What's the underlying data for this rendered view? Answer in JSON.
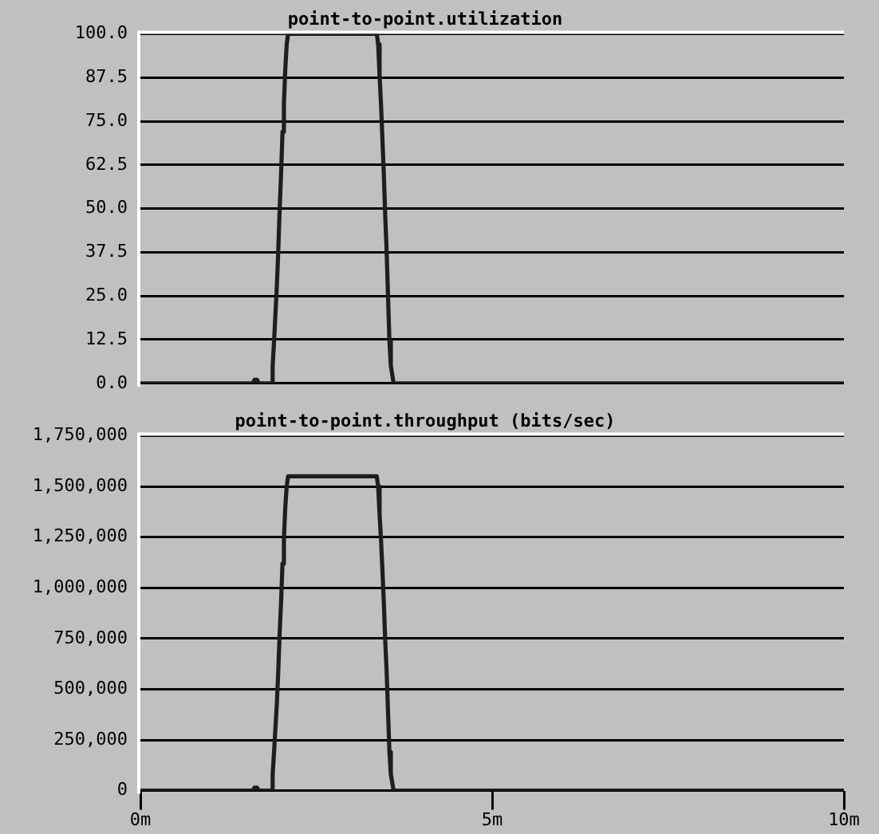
{
  "chart_data": [
    {
      "type": "line",
      "title": "point-to-point.utilization",
      "color": "#1e1e1e",
      "x": [
        0,
        1.6,
        1.62,
        1.66,
        1.68,
        1.86,
        1.88,
        1.9,
        1.92,
        1.94,
        1.96,
        1.98,
        2.0,
        2.02,
        2.04,
        2.06,
        2.08,
        2.1,
        3.36,
        3.38,
        3.4,
        3.42,
        3.44,
        3.46,
        3.48,
        3.5,
        3.52,
        3.54,
        3.56,
        3.6,
        10
      ],
      "values": [
        0,
        0,
        1,
        1,
        0,
        0,
        5,
        12,
        20,
        28,
        38,
        50,
        60,
        72,
        80,
        90,
        97,
        100,
        100,
        97,
        88,
        80,
        70,
        60,
        48,
        38,
        25,
        12,
        5,
        0,
        0
      ],
      "xlim": [
        0,
        10
      ],
      "ylim": [
        0,
        100
      ],
      "yticks": [
        {
          "value": 0,
          "label": "0.0"
        },
        {
          "value": 12.5,
          "label": "12.5"
        },
        {
          "value": 25,
          "label": "25.0"
        },
        {
          "value": 37.5,
          "label": "37.5"
        },
        {
          "value": 50,
          "label": "50.0"
        },
        {
          "value": 62.5,
          "label": "62.5"
        },
        {
          "value": 75,
          "label": "75.0"
        },
        {
          "value": 87.5,
          "label": "87.5"
        },
        {
          "value": 100,
          "label": "100.0"
        }
      ],
      "grid": "y",
      "tick_labels": "y"
    },
    {
      "type": "line",
      "title": "point-to-point.throughput (bits/sec)",
      "color": "#1e1e1e",
      "x": [
        0,
        1.6,
        1.62,
        1.66,
        1.68,
        1.86,
        1.88,
        1.9,
        1.92,
        1.94,
        1.96,
        1.98,
        2.0,
        2.02,
        2.04,
        2.06,
        2.08,
        2.1,
        3.36,
        3.38,
        3.4,
        3.42,
        3.44,
        3.46,
        3.48,
        3.5,
        3.52,
        3.54,
        3.56,
        3.6,
        10
      ],
      "values": [
        0,
        0,
        15000,
        15000,
        0,
        0,
        80000,
        190000,
        310000,
        430000,
        590000,
        780000,
        930000,
        1120000,
        1240000,
        1400000,
        1500000,
        1550000,
        1550000,
        1500000,
        1360000,
        1240000,
        1090000,
        930000,
        740000,
        590000,
        390000,
        190000,
        80000,
        0,
        0
      ],
      "xlim": [
        0,
        10
      ],
      "xticks": [
        {
          "value": 0,
          "label": "0m"
        },
        {
          "value": 5,
          "label": "5m"
        },
        {
          "value": 10,
          "label": "10m"
        }
      ],
      "ylim": [
        0,
        1750000
      ],
      "yticks": [
        {
          "value": 0,
          "label": "0"
        },
        {
          "value": 250000,
          "label": "250,000"
        },
        {
          "value": 500000,
          "label": "500,000"
        },
        {
          "value": 750000,
          "label": "750,000"
        },
        {
          "value": 1000000,
          "label": "1,000,000"
        },
        {
          "value": 1250000,
          "label": "1,250,000"
        },
        {
          "value": 1500000,
          "label": "1,500,000"
        },
        {
          "value": 1750000,
          "label": "1,750,000"
        }
      ],
      "grid": "y"
    }
  ]
}
